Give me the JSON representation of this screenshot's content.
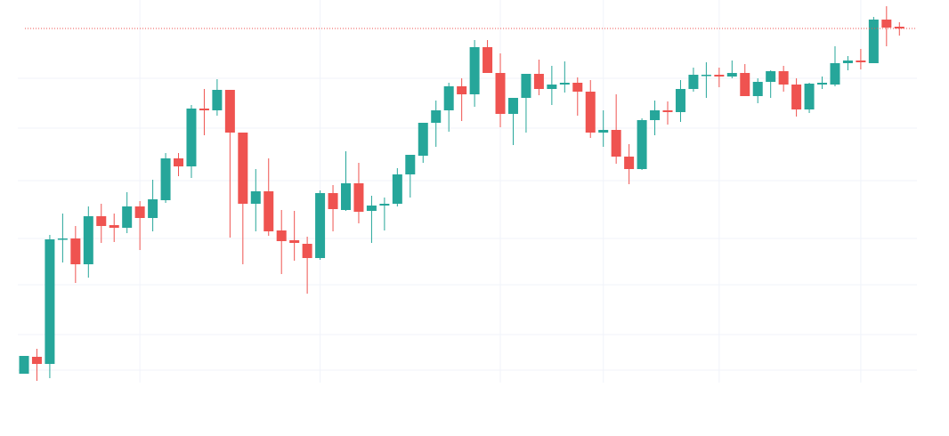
{
  "chart_data": {
    "type": "candlestick",
    "categories": [
      null,
      null,
      null,
      null,
      null,
      null,
      null,
      null,
      null,
      null,
      null,
      null,
      null,
      null,
      null,
      null,
      null,
      null,
      null,
      null,
      null,
      null,
      null,
      null,
      null,
      null,
      null,
      null,
      null,
      null,
      null,
      null,
      null,
      null,
      null,
      null,
      null,
      null,
      null,
      null,
      null,
      null,
      null,
      null,
      null,
      null,
      null,
      null,
      null,
      null,
      null,
      null,
      null,
      null,
      null,
      null,
      null,
      null,
      null,
      null,
      null,
      null,
      null,
      null,
      null,
      null,
      null,
      null,
      null
    ],
    "open": [
      70,
      89,
      81,
      221,
      222,
      193,
      247,
      237,
      234,
      258,
      245,
      265,
      312,
      303,
      368,
      366,
      389,
      341,
      261,
      275,
      231,
      220,
      216,
      200,
      273,
      254,
      284,
      253,
      259,
      261,
      294,
      315,
      352,
      366,
      393,
      384,
      437,
      408,
      362,
      380,
      407,
      390,
      395,
      397,
      387,
      341,
      344,
      314,
      300,
      355,
      366,
      364,
      390,
      405,
      406,
      404,
      408,
      382,
      398,
      410,
      395,
      367,
      395,
      395,
      419,
      422,
      419,
      468,
      460
    ],
    "high": [
      90,
      98,
      226,
      250,
      236,
      258,
      261,
      250,
      274,
      264,
      288,
      318,
      318,
      372,
      390,
      401,
      389,
      341,
      300,
      312,
      254,
      253,
      224,
      276,
      282,
      320,
      307,
      270,
      268,
      301,
      316,
      352,
      377,
      397,
      402,
      445,
      445,
      430,
      380,
      407,
      423,
      416,
      421,
      403,
      400,
      366,
      384,
      328,
      357,
      377,
      376,
      400,
      414,
      420,
      414,
      422,
      418,
      402,
      411,
      416,
      402,
      397,
      404,
      438,
      427,
      435,
      471,
      483,
      465
    ],
    "low": [
      70,
      62,
      65,
      195,
      172,
      178,
      217,
      218,
      228,
      209,
      230,
      262,
      292,
      290,
      338,
      360,
      223,
      193,
      230,
      225,
      182,
      197,
      160,
      198,
      230,
      253,
      239,
      217,
      231,
      258,
      268,
      307,
      325,
      342,
      354,
      370,
      408,
      347,
      327,
      341,
      383,
      372,
      386,
      360,
      335,
      325,
      306,
      283,
      299,
      338,
      350,
      353,
      387,
      380,
      392,
      402,
      382,
      374,
      380,
      387,
      359,
      363,
      390,
      393,
      411,
      412,
      419,
      438,
      450
    ],
    "close": [
      90,
      81,
      221,
      222,
      193,
      247,
      236,
      234,
      258,
      245,
      266,
      312,
      303,
      368,
      366,
      389,
      341,
      261,
      275,
      230,
      219,
      217,
      200,
      273,
      255,
      284,
      252,
      259,
      261,
      294,
      316,
      352,
      366,
      393,
      384,
      437,
      408,
      362,
      380,
      407,
      390,
      395,
      397,
      387,
      341,
      344,
      314,
      300,
      355,
      366,
      364,
      390,
      406,
      406,
      404,
      408,
      382,
      398,
      410,
      395,
      367,
      396,
      397,
      419,
      422,
      420,
      468,
      459,
      458
    ],
    "up_color": "#26a69a",
    "down_color": "#ef5350",
    "ylim": [
      60,
      490
    ],
    "yticks": [
      74,
      114,
      170,
      222,
      287,
      346,
      402
    ],
    "xticks": [
      9,
      23,
      37,
      45,
      54,
      65
    ],
    "grid": true,
    "last_price_line": true
  }
}
